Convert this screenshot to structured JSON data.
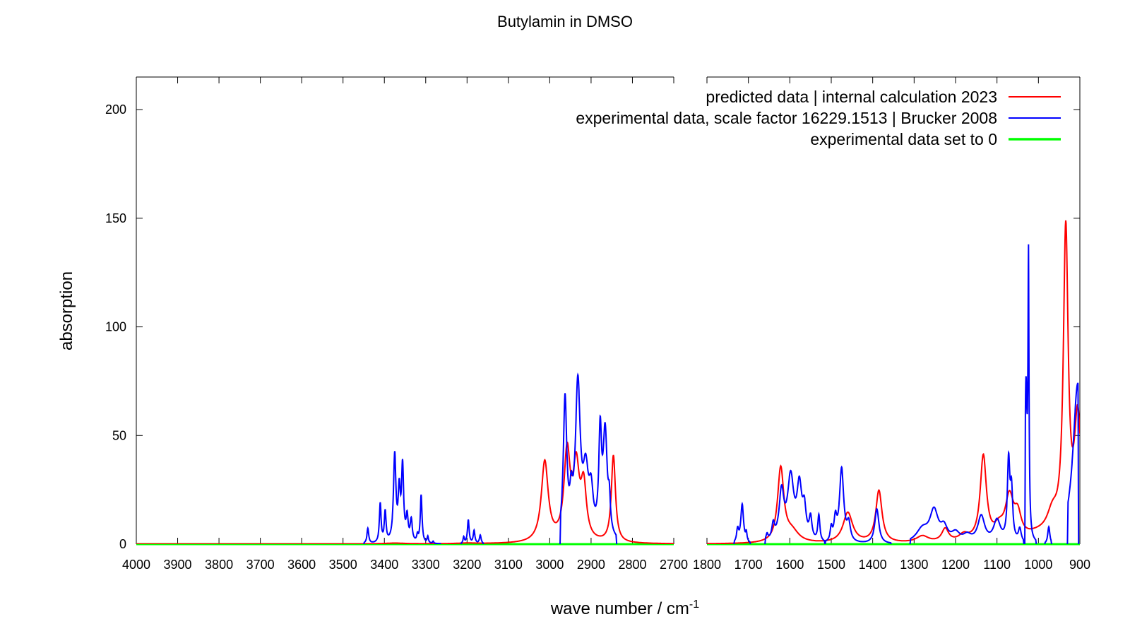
{
  "chart_data": {
    "type": "line",
    "title": "Butylamin in DMSO",
    "xlabel": "wave number / cm",
    "xlabel_superscript": "-1",
    "ylabel": "absorption",
    "ylim": [
      0,
      215
    ],
    "y_ticks": [
      0,
      50,
      100,
      150,
      200
    ],
    "x_reversed": true,
    "broken_axis": true,
    "grid": false,
    "legend_position": "top-right",
    "panels": [
      {
        "xlim": [
          4000,
          2700
        ],
        "x_ticks": [
          4000,
          3900,
          3800,
          3700,
          3600,
          3500,
          3400,
          3300,
          3200,
          3100,
          3000,
          2900,
          2800,
          2700
        ]
      },
      {
        "xlim": [
          1800,
          900
        ],
        "x_ticks": [
          1800,
          1700,
          1600,
          1500,
          1400,
          1300,
          1200,
          1100,
          1000,
          900
        ]
      }
    ],
    "series": [
      {
        "name": "predicted data | internal calculation 2023",
        "color": "#ff0000",
        "peaks": [
          [
            3375,
            0.4,
            30
          ],
          [
            3200,
            0.3,
            30
          ],
          [
            3012,
            37,
            10
          ],
          [
            2958,
            40,
            9
          ],
          [
            2936,
            32,
            9
          ],
          [
            2918,
            24,
            8
          ],
          [
            2846,
            40,
            6
          ],
          [
            1622,
            34,
            9
          ],
          [
            1595,
            5,
            20
          ],
          [
            1460,
            14,
            14
          ],
          [
            1385,
            24,
            9
          ],
          [
            1280,
            3,
            18
          ],
          [
            1225,
            6,
            10
          ],
          [
            1180,
            3,
            14
          ],
          [
            1133,
            39,
            9
          ],
          [
            1095,
            5,
            14
          ],
          [
            1070,
            19,
            12
          ],
          [
            1050,
            10,
            10
          ],
          [
            1000,
            3,
            40
          ],
          [
            966,
            10,
            16
          ],
          [
            934,
            140,
            7
          ],
          [
            905,
            55,
            10
          ]
        ]
      },
      {
        "name": "experimental data, scale factor 16229.1513 | Brucker 2008",
        "color": "#0000ff",
        "segments": [
          {
            "range": [
              3450,
              3263
            ],
            "peaks": [
              [
                3440,
                7,
                2.5
              ],
              [
                3410,
                18,
                2.5
              ],
              [
                3398,
                14,
                2.5
              ],
              [
                3375,
                40,
                3.5
              ],
              [
                3364,
                22,
                3
              ],
              [
                3356,
                34,
                3
              ],
              [
                3345,
                11,
                3
              ],
              [
                3335,
                10,
                3
              ],
              [
                3320,
                3,
                2
              ],
              [
                3311,
                22,
                2.5
              ],
              [
                3295,
                3,
                1.8
              ],
              [
                3282,
                1,
                1.5
              ]
            ]
          },
          {
            "range": [
              3215,
              3160
            ],
            "peaks": [
              [
                3208,
                3,
                2
              ],
              [
                3197,
                11,
                2.5
              ],
              [
                3183,
                6,
                2.5
              ],
              [
                3168,
                4,
                2.5
              ]
            ]
          },
          {
            "range": [
              2975,
              2838
            ],
            "peaks": [
              [
                2963,
                64,
                5
              ],
              [
                2948,
                14,
                4
              ],
              [
                2932,
                70,
                7
              ],
              [
                2913,
                28,
                8
              ],
              [
                2900,
                18,
                6
              ],
              [
                2878,
                45,
                4
              ],
              [
                2866,
                48,
                6
              ],
              [
                2856,
                13,
                3
              ]
            ]
          },
          {
            "range": [
              1735,
              1695
            ],
            "peaks": [
              [
                1726,
                6,
                3
              ],
              [
                1715,
                18,
                4
              ],
              [
                1705,
                4,
                2
              ]
            ]
          },
          {
            "range": [
              1660,
              1515
            ],
            "peaks": [
              [
                1655,
                3,
                3
              ],
              [
                1640,
                7,
                4
              ],
              [
                1620,
                22,
                7
              ],
              [
                1598,
                29,
                9
              ],
              [
                1577,
                24,
                7
              ],
              [
                1565,
                13,
                5
              ],
              [
                1550,
                10,
                4
              ],
              [
                1530,
                12,
                3
              ]
            ]
          },
          {
            "range": [
              1515,
              1355
            ],
            "peaks": [
              [
                1500,
                6,
                3
              ],
              [
                1490,
                10,
                4
              ],
              [
                1475,
                34,
                6
              ],
              [
                1458,
                8,
                5
              ],
              [
                1390,
                16,
                6
              ]
            ]
          },
          {
            "range": [
              1310,
              1035
            ],
            "peaks": [
              [
                1280,
                6,
                18
              ],
              [
                1252,
                14,
                12
              ],
              [
                1228,
                6,
                10
              ],
              [
                1200,
                4,
                12
              ],
              [
                1172,
                3,
                12
              ],
              [
                1138,
                12,
                10
              ],
              [
                1100,
                10,
                10
              ],
              [
                1072,
                36,
                3.5
              ],
              [
                1065,
                22,
                3.5
              ],
              [
                1045,
                6,
                4
              ]
            ]
          },
          {
            "range": [
              1033,
              1005
            ],
            "peaks": [
              [
                1030,
                70,
                3
              ],
              [
                1024,
                124,
                1.5
              ]
            ]
          },
          {
            "range": [
              985,
              968
            ],
            "peaks": [
              [
                975,
                8,
                3
              ]
            ]
          },
          {
            "range": [
              930,
              903
            ],
            "peaks": [
              [
                905,
                74,
                14
              ]
            ]
          }
        ]
      },
      {
        "name": "experimental data set to 0",
        "color": "#00ff00",
        "value": 0
      }
    ]
  }
}
